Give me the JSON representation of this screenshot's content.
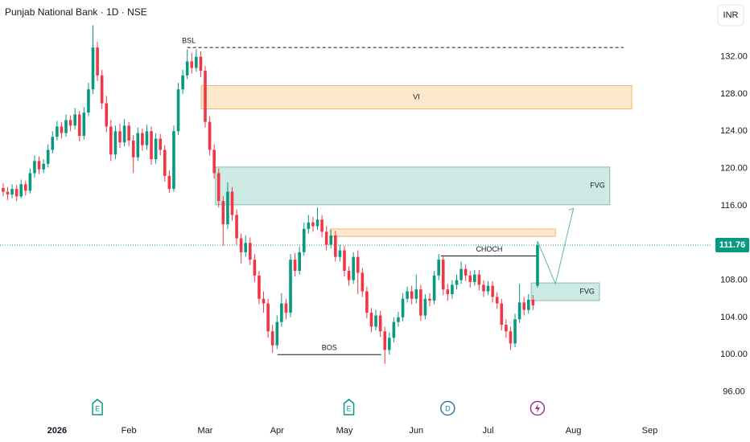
{
  "chart_data": {
    "type": "candlestick",
    "title": "Punjab National Bank · 1D · NSE",
    "currency": "INR",
    "up_color": "#089981",
    "down_color": "#f23645",
    "candles": [
      [
        117.9,
        118.4,
        117.0,
        117.5
      ],
      [
        117.5,
        118.0,
        116.6,
        117.2
      ],
      [
        117.2,
        118.3,
        116.8,
        117.8
      ],
      [
        117.8,
        118.2,
        116.5,
        117.0
      ],
      [
        117.0,
        118.8,
        116.8,
        118.3
      ],
      [
        118.3,
        118.7,
        117.1,
        117.6
      ],
      [
        117.6,
        120.0,
        117.3,
        119.5
      ],
      [
        119.5,
        121.4,
        119.0,
        120.8
      ],
      [
        120.8,
        121.3,
        119.4,
        119.9
      ],
      [
        119.9,
        121.0,
        119.5,
        120.5
      ],
      [
        120.5,
        122.6,
        120.1,
        122.0
      ],
      [
        122.0,
        124.0,
        121.6,
        123.4
      ],
      [
        123.4,
        125.1,
        123.0,
        124.5
      ],
      [
        124.5,
        125.0,
        123.2,
        123.8
      ],
      [
        123.8,
        125.8,
        123.4,
        125.2
      ],
      [
        125.2,
        125.7,
        124.0,
        124.6
      ],
      [
        124.6,
        126.5,
        124.2,
        125.8
      ],
      [
        125.8,
        126.2,
        122.9,
        123.5
      ],
      [
        123.5,
        126.6,
        123.1,
        126.0
      ],
      [
        126.0,
        129.2,
        125.6,
        128.5
      ],
      [
        128.5,
        135.4,
        128.0,
        133.0
      ],
      [
        133.0,
        133.6,
        129.4,
        130.0
      ],
      [
        130.0,
        130.6,
        126.4,
        127.0
      ],
      [
        127.0,
        127.8,
        123.9,
        124.5
      ],
      [
        124.5,
        125.2,
        120.8,
        121.5
      ],
      [
        121.5,
        124.6,
        121.0,
        124.0
      ],
      [
        124.0,
        124.8,
        122.2,
        122.8
      ],
      [
        122.8,
        125.3,
        122.4,
        124.6
      ],
      [
        124.6,
        125.0,
        122.4,
        123.0
      ],
      [
        123.0,
        123.6,
        119.5,
        121.2
      ],
      [
        121.2,
        124.4,
        120.8,
        123.8
      ],
      [
        123.8,
        124.3,
        121.9,
        122.5
      ],
      [
        122.5,
        124.7,
        122.0,
        124.0
      ],
      [
        124.0,
        124.5,
        120.4,
        121.0
      ],
      [
        121.0,
        123.8,
        120.5,
        123.2
      ],
      [
        123.2,
        123.7,
        121.4,
        122.0
      ],
      [
        122.0,
        122.5,
        118.6,
        119.2
      ],
      [
        119.2,
        119.8,
        117.4,
        117.8
      ],
      [
        117.8,
        124.6,
        117.5,
        124.0
      ],
      [
        124.0,
        129.2,
        123.6,
        128.5
      ],
      [
        128.5,
        130.6,
        128.0,
        130.0
      ],
      [
        130.0,
        132.8,
        129.6,
        131.5
      ],
      [
        131.5,
        132.4,
        130.2,
        130.8
      ],
      [
        130.8,
        132.8,
        130.4,
        132.0
      ],
      [
        132.0,
        132.6,
        129.8,
        130.5
      ],
      [
        130.5,
        131.0,
        124.4,
        125.0
      ],
      [
        125.0,
        125.6,
        121.4,
        122.0
      ],
      [
        122.0,
        122.6,
        118.9,
        119.5
      ],
      [
        119.5,
        120.0,
        115.8,
        116.5
      ],
      [
        116.5,
        117.0,
        111.7,
        114.0
      ],
      [
        114.0,
        118.5,
        113.5,
        117.5
      ],
      [
        117.5,
        118.0,
        114.4,
        115.0
      ],
      [
        115.0,
        115.6,
        111.8,
        112.5
      ],
      [
        112.5,
        113.0,
        109.8,
        111.0
      ],
      [
        111.0,
        112.8,
        110.5,
        112.0
      ],
      [
        112.0,
        112.6,
        109.6,
        110.2
      ],
      [
        110.2,
        110.8,
        107.8,
        108.5
      ],
      [
        108.5,
        109.0,
        105.4,
        106.0
      ],
      [
        106.0,
        106.8,
        104.5,
        105.5
      ],
      [
        105.5,
        106.0,
        101.8,
        102.5
      ],
      [
        102.5,
        103.2,
        100.2,
        101.0
      ],
      [
        101.0,
        104.2,
        100.6,
        103.5
      ],
      [
        103.5,
        106.6,
        103.0,
        105.5
      ],
      [
        105.5,
        106.0,
        103.8,
        104.5
      ],
      [
        104.5,
        110.8,
        104.0,
        110.2
      ],
      [
        110.2,
        110.9,
        108.4,
        109.0
      ],
      [
        109.0,
        111.6,
        108.6,
        111.0
      ],
      [
        111.0,
        114.2,
        110.6,
        113.5
      ],
      [
        113.5,
        115.0,
        113.0,
        114.2
      ],
      [
        114.2,
        114.8,
        113.2,
        113.8
      ],
      [
        113.8,
        115.8,
        113.4,
        114.5
      ],
      [
        114.5,
        115.0,
        112.6,
        113.2
      ],
      [
        113.2,
        113.8,
        111.2,
        111.8
      ],
      [
        111.8,
        113.4,
        111.4,
        112.8
      ],
      [
        112.8,
        113.3,
        110.0,
        110.5
      ],
      [
        110.5,
        111.8,
        110.0,
        111.2
      ],
      [
        111.2,
        111.7,
        108.4,
        109.0
      ],
      [
        109.0,
        109.5,
        107.4,
        108.0
      ],
      [
        108.0,
        111.0,
        107.6,
        110.5
      ],
      [
        110.5,
        111.2,
        106.5,
        108.8
      ],
      [
        108.8,
        109.3,
        106.2,
        106.8
      ],
      [
        106.8,
        107.3,
        103.9,
        104.5
      ],
      [
        104.5,
        105.0,
        102.4,
        103.0
      ],
      [
        103.0,
        104.8,
        102.6,
        104.2
      ],
      [
        104.2,
        104.7,
        101.9,
        102.5
      ],
      [
        102.5,
        103.0,
        99.0,
        100.5
      ],
      [
        100.5,
        102.4,
        100.0,
        101.8
      ],
      [
        101.8,
        104.0,
        101.3,
        103.5
      ],
      [
        103.5,
        104.6,
        103.0,
        104.0
      ],
      [
        104.0,
        106.6,
        103.6,
        106.0
      ],
      [
        106.0,
        107.3,
        105.6,
        106.8
      ],
      [
        106.8,
        107.4,
        105.4,
        106.0
      ],
      [
        106.0,
        108.6,
        105.5,
        107.0
      ],
      [
        107.0,
        107.5,
        103.6,
        104.2
      ],
      [
        104.2,
        106.5,
        103.8,
        106.0
      ],
      [
        106.0,
        106.6,
        105.2,
        105.8
      ],
      [
        105.8,
        109.0,
        105.4,
        108.5
      ],
      [
        108.5,
        110.8,
        108.0,
        110.2
      ],
      [
        110.2,
        110.7,
        106.4,
        107.0
      ],
      [
        107.0,
        107.6,
        105.8,
        106.5
      ],
      [
        106.5,
        108.0,
        106.0,
        107.5
      ],
      [
        107.5,
        108.6,
        107.0,
        108.0
      ],
      [
        108.0,
        110.0,
        107.6,
        109.2
      ],
      [
        109.2,
        109.7,
        107.9,
        108.5
      ],
      [
        108.5,
        109.0,
        107.2,
        107.8
      ],
      [
        107.8,
        109.1,
        107.4,
        108.6
      ],
      [
        108.6,
        109.1,
        106.9,
        107.5
      ],
      [
        107.5,
        108.0,
        106.2,
        106.8
      ],
      [
        106.8,
        107.9,
        106.4,
        107.4
      ],
      [
        107.4,
        107.9,
        105.6,
        106.2
      ],
      [
        106.2,
        106.7,
        104.9,
        105.5
      ],
      [
        105.5,
        106.0,
        102.6,
        103.2
      ],
      [
        103.2,
        103.8,
        101.8,
        102.5
      ],
      [
        102.5,
        103.0,
        100.5,
        101.2
      ],
      [
        101.2,
        104.4,
        100.8,
        103.8
      ],
      [
        103.8,
        107.6,
        103.4,
        105.6
      ],
      [
        105.6,
        106.2,
        104.2,
        104.8
      ],
      [
        104.8,
        106.5,
        104.4,
        105.9
      ],
      [
        105.9,
        106.4,
        104.8,
        105.3
      ],
      [
        107.4,
        112.2,
        107.2,
        111.76
      ]
    ],
    "xlim": [
      -0.7,
      157.9
    ],
    "xticks": [
      {
        "value": 12,
        "label": "2026"
      },
      {
        "value": 28,
        "label": "Feb"
      },
      {
        "value": 45,
        "label": "Mar"
      },
      {
        "value": 61,
        "label": "Apr"
      },
      {
        "value": 76,
        "label": "May"
      },
      {
        "value": 92,
        "label": "Jun"
      },
      {
        "value": 108,
        "label": "Jul"
      },
      {
        "value": 127,
        "label": "Aug"
      },
      {
        "value": 144,
        "label": "Sep"
      }
    ],
    "ylim": [
      93.2,
      138.1
    ],
    "yticks": [
      {
        "value": 96,
        "label": "96.00"
      },
      {
        "value": 100,
        "label": "100.00"
      },
      {
        "value": 104,
        "label": "104.00"
      },
      {
        "value": 108,
        "label": "108.00"
      },
      {
        "value": 112,
        "label": "112.00"
      },
      {
        "value": 116,
        "label": "116.00"
      },
      {
        "value": 120,
        "label": "120.00"
      },
      {
        "value": 124,
        "label": "124.00"
      },
      {
        "value": 128,
        "label": "128.00"
      },
      {
        "value": 132,
        "label": "132.00"
      }
    ],
    "last_price": 111.76,
    "zones": [
      {
        "label": "VI",
        "x": [
          44.1,
          140
        ],
        "y": [
          126.4,
          128.9
        ],
        "fill": "#fde8cc",
        "stroke": "#f3b577"
      },
      {
        "label": "FVG",
        "x": [
          47.3,
          135.1
        ],
        "y": [
          116.1,
          120.15
        ],
        "fill": "#cdeae4",
        "stroke": "#86bdb2"
      },
      {
        "x": [
          72.8,
          123
        ],
        "y": [
          112.7,
          113.5
        ],
        "fill": "#fde8cc",
        "stroke": "#f3b577"
      },
      {
        "label": "FVG",
        "x": [
          117.6,
          132.8
        ],
        "y": [
          105.8,
          107.7
        ],
        "fill": "#cdeae4",
        "stroke": "#86bdb2"
      }
    ],
    "lines": [
      {
        "label": "BSL",
        "x": [
          41,
          138.2
        ],
        "y": 133.0,
        "dashed": true
      },
      {
        "label": "BOS",
        "x": [
          61.1,
          84.2
        ],
        "y": 100.0,
        "dashed": false
      },
      {
        "label": "CHOCH",
        "x": [
          97.5,
          119
        ],
        "y": 110.6,
        "dashed": false
      }
    ],
    "projection": {
      "x": [
        119,
        123,
        127
      ],
      "y": [
        112.2,
        107.6,
        115.7
      ],
      "color": "#5fb8a6"
    },
    "events": [
      {
        "x": 21,
        "label": "E",
        "color": "#089981"
      },
      {
        "x": 77,
        "label": "E",
        "color": "#089981"
      },
      {
        "x": 99,
        "label": "D",
        "color": "#2a7fa8"
      },
      {
        "x": 119,
        "color": "#a2348f"
      }
    ]
  }
}
